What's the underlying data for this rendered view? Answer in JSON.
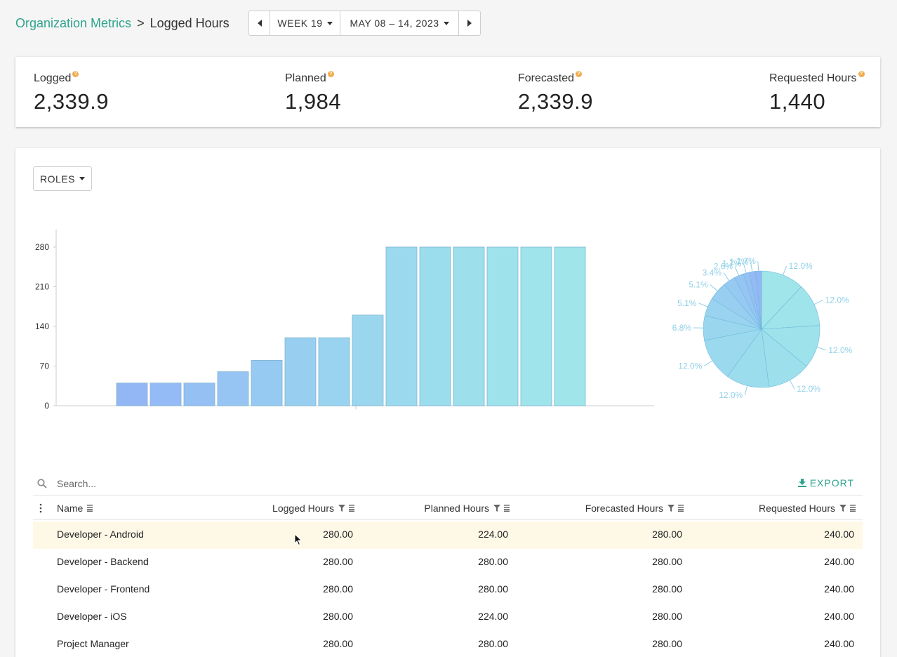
{
  "breadcrumb": {
    "parent": "Organization Metrics",
    "separator": ">",
    "current": "Logged Hours"
  },
  "period_nav": {
    "week_label": "WEEK 19",
    "date_range": "MAY 08 – 14, 2023"
  },
  "stats": [
    {
      "label": "Logged",
      "value": "2,339.9"
    },
    {
      "label": "Planned",
      "value": "1,984"
    },
    {
      "label": "Forecasted",
      "value": "2,339.9"
    },
    {
      "label": "Requested Hours",
      "value": "1,440"
    }
  ],
  "grouping_button": "ROLES",
  "chart_data": [
    {
      "type": "bar",
      "values": [
        40,
        40,
        40,
        60,
        80,
        120,
        120,
        160,
        280,
        280,
        280,
        280,
        280,
        280
      ],
      "yticks": [
        0,
        70,
        140,
        210,
        280
      ],
      "ylim": [
        0,
        300
      ],
      "colors": [
        "#93b6f5",
        "#94bbf5",
        "#95c0f4",
        "#96c5f3",
        "#97caf2",
        "#98cff1",
        "#99d3f0",
        "#9ad7ef",
        "#9bdaee",
        "#9cdded",
        "#9de0ec",
        "#9ee2eb",
        "#9fe4ea",
        "#a0e5e9"
      ]
    },
    {
      "type": "pie",
      "values": [
        12.0,
        12.0,
        12.0,
        12.0,
        12.0,
        12.0,
        6.8,
        5.1,
        5.1,
        3.4,
        2.6,
        1.7,
        1.7,
        1.7
      ],
      "labels": [
        "12.0%",
        "12.0%",
        "12.0%",
        "12.0%",
        "12.0%",
        "12.0%",
        "6.8%",
        "5.1%",
        "5.1%",
        "3.4%",
        "2.6%",
        "1.7%",
        "1.7%",
        "1.7%"
      ],
      "colors": [
        "#a0e5e9",
        "#9fe4ea",
        "#9ee2eb",
        "#9de0ec",
        "#9cdded",
        "#9bdaee",
        "#9ad7ef",
        "#99d3f0",
        "#98cff1",
        "#97caf2",
        "#96c5f3",
        "#95c0f4",
        "#94bbf5",
        "#93b6f5"
      ]
    }
  ],
  "table": {
    "search_placeholder": "Search...",
    "export_label": "EXPORT",
    "columns": [
      "Name",
      "Logged Hours",
      "Planned Hours",
      "Forecasted Hours",
      "Requested Hours"
    ],
    "rows": [
      {
        "name": "Developer - Android",
        "logged": "280.00",
        "planned": "224.00",
        "forecasted": "280.00",
        "requested": "240.00"
      },
      {
        "name": "Developer - Backend",
        "logged": "280.00",
        "planned": "280.00",
        "forecasted": "280.00",
        "requested": "240.00"
      },
      {
        "name": "Developer - Frontend",
        "logged": "280.00",
        "planned": "280.00",
        "forecasted": "280.00",
        "requested": "240.00"
      },
      {
        "name": "Developer - iOS",
        "logged": "280.00",
        "planned": "224.00",
        "forecasted": "280.00",
        "requested": "240.00"
      },
      {
        "name": "Project Manager",
        "logged": "280.00",
        "planned": "280.00",
        "forecasted": "280.00",
        "requested": "240.00"
      }
    ]
  }
}
